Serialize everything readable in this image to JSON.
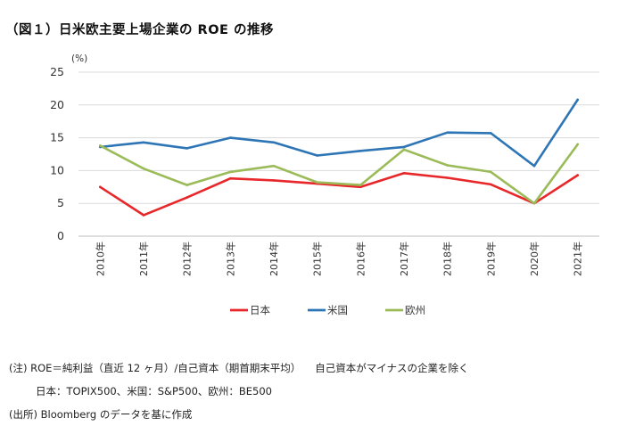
{
  "title": "（図１）日米欧主要上場企業の ROE の推移",
  "chart_data": {
    "type": "line",
    "title": "（図１）日米欧主要上場企業の ROE の推移",
    "ylabel": "(%)",
    "ylim": [
      0,
      25
    ],
    "yticks": [
      "0",
      "5",
      "10",
      "15",
      "20",
      "25"
    ],
    "grid": true,
    "legend_position": "bottom",
    "categories": [
      "2010年",
      "2011年",
      "2012年",
      "2013年",
      "2014年",
      "2015年",
      "2016年",
      "2017年",
      "2018年",
      "2019年",
      "2020年",
      "2021年"
    ],
    "series": [
      {
        "name": "日本",
        "color": "#e8272a",
        "values": [
          7.5,
          3.2,
          5.9,
          8.8,
          8.5,
          8.0,
          7.5,
          9.6,
          8.9,
          7.9,
          5.0,
          9.3
        ]
      },
      {
        "name": "米国",
        "color": "#2e75b6",
        "values": [
          13.6,
          14.3,
          13.4,
          15.0,
          14.3,
          12.3,
          13.0,
          13.6,
          15.8,
          15.7,
          10.7,
          20.8
        ]
      },
      {
        "name": "欧州",
        "color": "#9bbb59",
        "values": [
          13.8,
          10.3,
          7.8,
          9.8,
          10.7,
          8.2,
          7.8,
          13.2,
          10.8,
          9.8,
          5.0,
          14.0
        ]
      }
    ]
  },
  "notes": {
    "line1_a": "(注) ROE＝純利益（直近 12 ヶ月）/自己資本（期首期末平均）",
    "line1_b": "自己資本がマイナスの企業を除く",
    "line2": "日本：TOPIX500、米国：S&P500、欧州：BE500",
    "line3": "(出所) Bloomberg のデータを基に作成"
  }
}
